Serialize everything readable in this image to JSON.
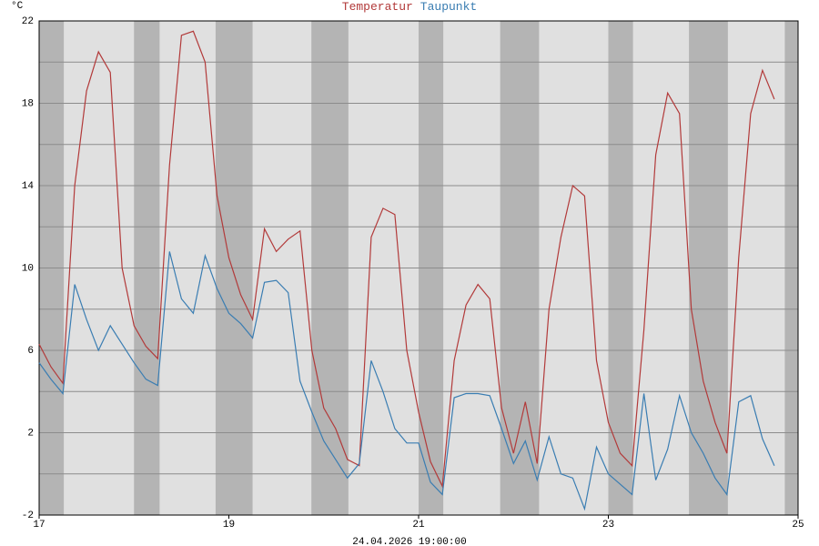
{
  "chart_data": {
    "type": "line",
    "y_unit": "°C",
    "footer": "24.04.2026 19:00:00",
    "x": [
      17,
      17.125,
      17.25,
      17.375,
      17.5,
      17.625,
      17.75,
      17.875,
      18,
      18.125,
      18.25,
      18.375,
      18.5,
      18.625,
      18.75,
      18.875,
      19,
      19.125,
      19.25,
      19.375,
      19.5,
      19.625,
      19.75,
      19.875,
      20,
      20.125,
      20.25,
      20.375,
      20.5,
      20.625,
      20.75,
      20.875,
      21,
      21.125,
      21.25,
      21.375,
      21.5,
      21.625,
      21.75,
      21.875,
      22,
      22.125,
      22.25,
      22.375,
      22.5,
      22.625,
      22.75,
      22.875,
      23,
      23.125,
      23.25,
      23.375,
      23.5,
      23.625,
      23.75,
      23.875,
      24,
      24.125,
      24.25,
      24.375,
      24.5,
      24.625,
      24.75
    ],
    "series": [
      {
        "name": "Temperatur",
        "color": "#b23a3a",
        "values": [
          6.3,
          5.2,
          4.4,
          14,
          18.6,
          20.5,
          19.5,
          10,
          7.2,
          6.2,
          5.6,
          15,
          21.3,
          21.5,
          20,
          13.5,
          10.5,
          8.7,
          7.5,
          11.9,
          10.8,
          11.4,
          11.8,
          6,
          3.2,
          2.2,
          0.7,
          0.4,
          11.5,
          12.9,
          12.6,
          6,
          3.0,
          0.6,
          -0.6,
          5.5,
          8.2,
          9.2,
          8.5,
          3.2,
          1.0,
          3.5,
          0.5,
          8.0,
          11.5,
          14.0,
          13.5,
          5.5,
          2.5,
          1.0,
          0.4,
          7.0,
          15.5,
          18.5,
          17.5,
          8.0,
          4.5,
          2.5,
          1.0,
          10.5,
          17.5,
          19.6,
          18.2
        ]
      },
      {
        "name": "Taupunkt",
        "color": "#3a7db2",
        "values": [
          5.4,
          4.6,
          3.9,
          9.2,
          7.5,
          6.0,
          7.2,
          6.3,
          5.4,
          4.6,
          4.3,
          10.8,
          8.5,
          7.8,
          10.6,
          9.0,
          7.8,
          7.3,
          6.6,
          9.3,
          9.4,
          8.8,
          4.5,
          3.0,
          1.6,
          0.7,
          -0.2,
          0.5,
          5.5,
          4.0,
          2.2,
          1.5,
          1.5,
          -0.4,
          -1.0,
          3.7,
          3.9,
          3.9,
          3.8,
          2.2,
          0.5,
          1.6,
          -0.3,
          1.8,
          0,
          -0.2,
          -1.7,
          1.3,
          0,
          -0.5,
          -1.0,
          3.9,
          -0.3,
          1.2,
          3.8,
          2.0,
          1.0,
          -0.2,
          -1.0,
          3.5,
          3.8,
          1.7,
          0.4
        ]
      }
    ],
    "xlim": [
      17,
      25
    ],
    "xticks": [
      17,
      19,
      21,
      23,
      25
    ],
    "ylim": [
      -2,
      22
    ],
    "yticks": [
      -2,
      2,
      6,
      10,
      14,
      18,
      22
    ],
    "ygrid": [
      0,
      2,
      4,
      6,
      8,
      10,
      12,
      14,
      16,
      18,
      20
    ],
    "shaded_spans": [
      [
        17,
        17.26
      ],
      [
        18,
        18.27
      ],
      [
        18.86,
        19.25
      ],
      [
        19.87,
        20.26
      ],
      [
        21,
        21.26
      ],
      [
        21.86,
        22.27
      ],
      [
        23,
        23.26
      ],
      [
        23.85,
        24.26
      ],
      [
        24.86,
        25
      ]
    ],
    "background": "#e0e0e0",
    "shade_color": "#b4b4b4",
    "grid_color": "#8c8c8c"
  }
}
